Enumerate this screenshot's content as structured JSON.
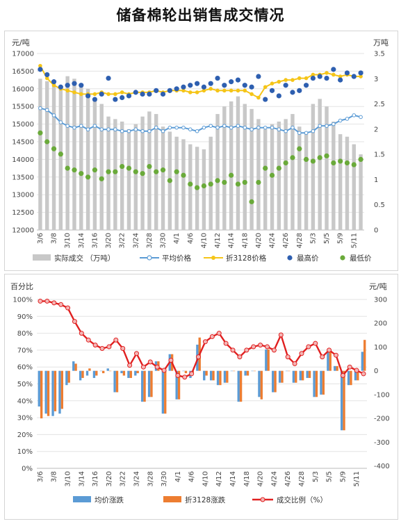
{
  "page_title": "储备棉轮出销售成交情况",
  "colors": {
    "bar": "#c8c8c8",
    "avg_line": "#5b9bd5",
    "conv_line": "#f5c518",
    "high_dot": "#2e5fb0",
    "low_dot": "#6aaa3a",
    "avg_change_bar": "#5b9bd5",
    "conv_change_bar": "#ed7d31",
    "ratio_line": "#e02020",
    "ratio_marker_fill": "#f4b6b6"
  },
  "chart_data": [
    {
      "type": "bar+line+scatter",
      "y_left_unit": "元/吨",
      "y_right_unit": "万吨",
      "y_left_range": [
        12000,
        17000
      ],
      "y_left_ticks": [
        "12000",
        "12500",
        "13000",
        "13500",
        "14000",
        "14500",
        "15000",
        "15500",
        "16000",
        "16500",
        "17000"
      ],
      "y_right_range": [
        0,
        3.5
      ],
      "y_right_ticks": [
        "0",
        "0.5",
        "1",
        "1.5",
        "2",
        "2.5",
        "3",
        "3.5"
      ],
      "x_tick_labels": [
        "3/6",
        "3/8",
        "3/10",
        "3/14",
        "3/16",
        "3/20",
        "3/22",
        "3/24",
        "3/28",
        "3/30",
        "4/1",
        "4/6",
        "4/10",
        "4/12",
        "4/14",
        "4/18",
        "4/20",
        "4/24",
        "4/26",
        "4/28",
        "5/3",
        "5/5",
        "5/9",
        "5/11"
      ],
      "x_count": 48,
      "grid": true,
      "legend_position": "bottom",
      "series": [
        {
          "name": "实际成交 （万吨）",
          "kind": "bar",
          "axis": "right",
          "values": [
            3.0,
            2.95,
            2.9,
            2.85,
            3.05,
            3.0,
            2.9,
            2.8,
            2.6,
            2.5,
            2.25,
            2.2,
            2.15,
            2.0,
            2.1,
            2.25,
            2.35,
            2.3,
            2.05,
            1.95,
            1.85,
            1.8,
            1.7,
            1.65,
            1.6,
            1.85,
            2.3,
            2.45,
            2.55,
            2.65,
            2.5,
            2.4,
            2.2,
            2.0,
            2.1,
            2.15,
            2.2,
            2.3,
            2.05,
            1.95,
            2.5,
            2.6,
            2.45,
            2.15,
            1.9,
            1.85,
            1.7,
            1.5
          ]
        },
        {
          "name": "平均价格",
          "kind": "line",
          "axis": "left",
          "values": [
            15450,
            15400,
            15250,
            15050,
            14950,
            14900,
            14950,
            14850,
            14950,
            14850,
            14850,
            14850,
            14800,
            14800,
            14850,
            14800,
            14800,
            14900,
            14800,
            14900,
            14900,
            14900,
            14850,
            14800,
            14900,
            14950,
            14900,
            14950,
            14900,
            14950,
            14900,
            14850,
            14900,
            14900,
            14900,
            14850,
            14800,
            14900,
            14750,
            14750,
            14800,
            14950,
            14950,
            15000,
            15100,
            15150,
            15250,
            15200
          ]
        },
        {
          "name": "折3128价格",
          "kind": "line",
          "axis": "left",
          "values": [
            16650,
            16300,
            16100,
            16000,
            15950,
            15900,
            15850,
            15850,
            15850,
            15900,
            15850,
            15850,
            15900,
            15850,
            15900,
            15900,
            15900,
            15950,
            15900,
            15950,
            15950,
            15950,
            15900,
            15900,
            15950,
            16000,
            15950,
            15950,
            15950,
            15950,
            15950,
            15850,
            15750,
            16050,
            16150,
            16200,
            16250,
            16250,
            16300,
            16300,
            16400,
            16400,
            16450,
            16400,
            16350,
            16400,
            16350,
            16350
          ]
        },
        {
          "name": "最高价",
          "kind": "scatter",
          "axis": "left",
          "values": [
            16550,
            16400,
            16200,
            16050,
            16100,
            16150,
            16100,
            15800,
            15700,
            15850,
            16300,
            15700,
            15750,
            15800,
            15900,
            15850,
            15850,
            15950,
            15850,
            15950,
            16000,
            16050,
            16100,
            16150,
            16050,
            16150,
            16300,
            16100,
            16200,
            16250,
            16100,
            16050,
            16350,
            15700,
            15950,
            15800,
            16100,
            15900,
            15950,
            16100,
            16300,
            16350,
            16300,
            16550,
            16250,
            16450,
            16350,
            16450
          ]
        },
        {
          "name": "最低价",
          "kind": "scatter",
          "axis": "left",
          "values": [
            14750,
            14500,
            14300,
            14150,
            13750,
            13700,
            13600,
            13500,
            13700,
            13450,
            13650,
            13650,
            13800,
            13750,
            13650,
            13600,
            13800,
            13650,
            13700,
            13400,
            13650,
            13550,
            13300,
            13200,
            13250,
            13300,
            13400,
            13350,
            13550,
            13300,
            13350,
            12800,
            13350,
            13750,
            13550,
            13750,
            13900,
            14050,
            14300,
            14000,
            13950,
            14050,
            14100,
            13900,
            13950,
            13900,
            13850,
            14000
          ]
        }
      ]
    },
    {
      "type": "bar+line",
      "y_left_unit": "百分比",
      "y_right_unit": "元/吨",
      "y_left_range": [
        0,
        100
      ],
      "y_left_ticks": [
        "0%",
        "10%",
        "20%",
        "30%",
        "40%",
        "50%",
        "60%",
        "70%",
        "80%",
        "90%",
        "100%"
      ],
      "y_right_range": [
        -410,
        300
      ],
      "y_right_ticks": [
        "300",
        "200",
        "100",
        "0",
        "-100",
        "-200",
        "-300",
        "-400"
      ],
      "x_tick_labels": [
        "3/6",
        "3/8",
        "3/10",
        "3/14",
        "3/16",
        "3/20",
        "3/22",
        "3/24",
        "3/28",
        "3/30",
        "4/1",
        "4/6",
        "4/10",
        "4/12",
        "4/14",
        "4/18",
        "4/20",
        "4/24",
        "4/26",
        "4/28",
        "5/3",
        "5/5",
        "5/9",
        "5/11"
      ],
      "x_count": 48,
      "grid": true,
      "legend_position": "bottom",
      "series": [
        {
          "name": "均价涨跌",
          "kind": "bar",
          "axis": "right",
          "values": [
            -150,
            -180,
            -190,
            -180,
            -60,
            40,
            -40,
            -20,
            -30,
            0,
            10,
            -90,
            -10,
            -30,
            -20,
            -130,
            -110,
            40,
            -180,
            70,
            -120,
            0,
            -30,
            110,
            -40,
            -40,
            -60,
            -50,
            0,
            -130,
            -20,
            0,
            -110,
            90,
            -90,
            -50,
            0,
            -50,
            -40,
            -30,
            -110,
            -100,
            80,
            20,
            -250,
            -60,
            -40,
            80
          ]
        },
        {
          "name": "折3128涨跌",
          "kind": "bar",
          "axis": "right",
          "values": [
            -200,
            -190,
            -170,
            -160,
            -50,
            30,
            -30,
            10,
            -20,
            -10,
            0,
            -90,
            -20,
            -30,
            -10,
            -130,
            -110,
            40,
            -180,
            70,
            -120,
            -10,
            -10,
            140,
            -20,
            -40,
            -60,
            -50,
            0,
            -130,
            -20,
            0,
            -120,
            90,
            -90,
            -50,
            0,
            -50,
            -40,
            -30,
            -110,
            -100,
            80,
            20,
            -250,
            -60,
            -40,
            130
          ]
        },
        {
          "name": "成交比例（%）",
          "kind": "line",
          "axis": "left",
          "values": [
            99,
            99,
            98,
            97,
            95,
            87,
            80,
            76,
            73,
            71,
            72,
            76,
            71,
            61,
            68,
            60,
            63,
            60,
            58,
            64,
            55,
            54,
            56,
            66,
            75,
            78,
            80,
            74,
            70,
            66,
            70,
            72,
            73,
            72,
            70,
            79,
            66,
            62,
            68,
            72,
            74,
            66,
            70,
            67,
            55,
            60,
            58,
            56
          ]
        }
      ]
    }
  ]
}
